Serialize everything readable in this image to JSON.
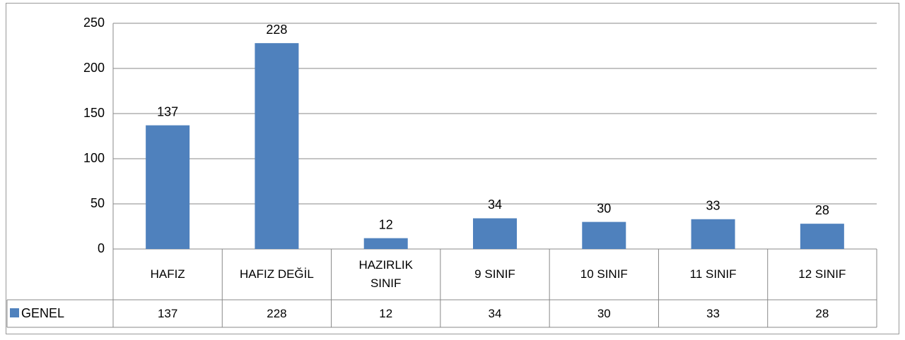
{
  "chart_data": {
    "type": "bar",
    "categories": [
      "HAFIZ",
      "HAFIZ DEĞİL",
      "HAZIRLIK SINIF",
      "9 SINIF",
      "10 SINIF",
      "11 SINIF",
      "12 SINIF"
    ],
    "series": [
      {
        "name": "GENEL",
        "color": "#4f81bd",
        "values": [
          137,
          228,
          12,
          34,
          30,
          33,
          28
        ]
      }
    ],
    "ylim": [
      0,
      250
    ],
    "yticks": [
      0,
      50,
      100,
      150,
      200,
      250
    ],
    "grid": true,
    "data_table": true
  }
}
